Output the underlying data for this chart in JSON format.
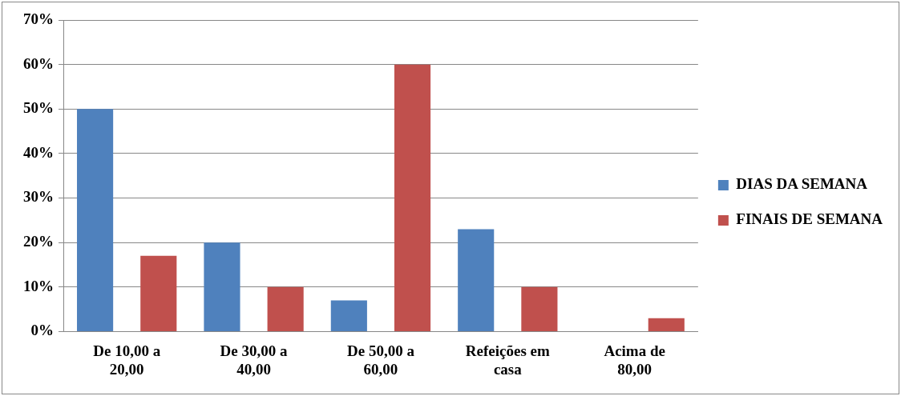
{
  "chart_data": {
    "type": "bar",
    "categories": [
      "De 10,00 a 20,00",
      "De 30,00 a 40,00",
      "De 50,00 a 60,00",
      "Refeições em casa",
      "Acima de 80,00"
    ],
    "series": [
      {
        "name": "DIAS DA SEMANA",
        "color": "#4f81bd",
        "values": [
          50,
          20,
          7,
          23,
          0
        ]
      },
      {
        "name": "FINAIS DE SEMANA",
        "color": "#c0504d",
        "values": [
          17,
          10,
          60,
          10,
          3
        ]
      }
    ],
    "ylim": [
      0,
      70
    ],
    "yticks": [
      {
        "value": 0,
        "label": "0%"
      },
      {
        "value": 10,
        "label": "10%"
      },
      {
        "value": 20,
        "label": "20%"
      },
      {
        "value": 30,
        "label": "30%"
      },
      {
        "value": 40,
        "label": "40%"
      },
      {
        "value": 50,
        "label": "50%"
      },
      {
        "value": 60,
        "label": "60%"
      },
      {
        "value": 70,
        "label": "70%"
      }
    ],
    "grid": "y",
    "legend": "right"
  }
}
